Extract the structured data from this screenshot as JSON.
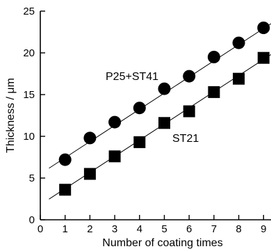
{
  "chart_data": {
    "type": "scatter",
    "xlabel": "Number of coating times",
    "ylabel": "Thickness / μm",
    "xlim": [
      0,
      9.3
    ],
    "ylim": [
      0,
      25
    ],
    "x_ticks": [
      0,
      1,
      2,
      3,
      4,
      5,
      6,
      7,
      8,
      9
    ],
    "y_ticks": [
      0,
      5,
      10,
      15,
      20,
      25
    ],
    "grid": false,
    "series": [
      {
        "name": "P25+ST41",
        "marker": "circle",
        "color": "#000000",
        "x": [
          1,
          2,
          3,
          4,
          5,
          6,
          7,
          8,
          9
        ],
        "y": [
          7.2,
          9.8,
          11.7,
          13.4,
          15.7,
          17.2,
          19.5,
          21.2,
          23.0
        ],
        "fit": [
          5.5,
          23.5
        ]
      },
      {
        "name": "ST21",
        "marker": "square",
        "color": "#000000",
        "x": [
          1,
          2,
          3,
          4,
          5,
          6,
          7,
          8,
          9
        ],
        "y": [
          3.6,
          5.5,
          7.6,
          9.3,
          11.6,
          13.0,
          15.3,
          16.9,
          19.4
        ],
        "fit": [
          1.8,
          19.8
        ]
      }
    ]
  }
}
